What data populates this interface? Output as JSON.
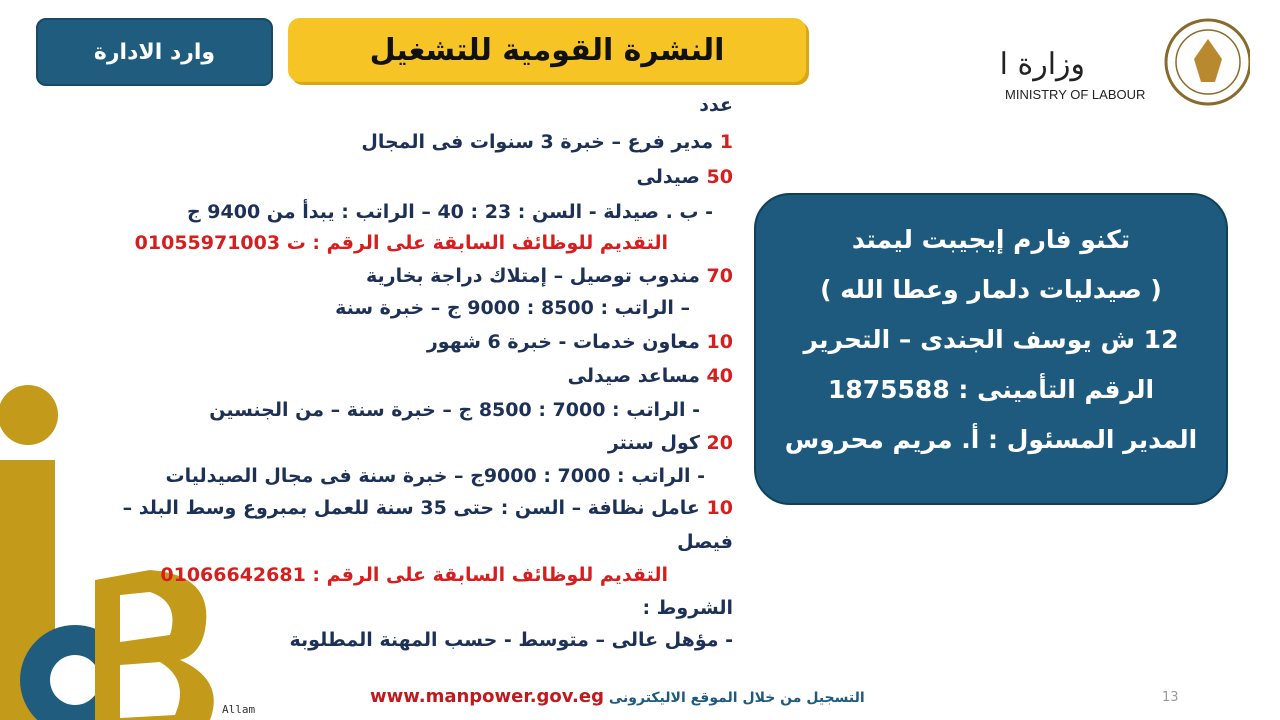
{
  "header": {
    "department_label": "وارد الادارة",
    "title": "النشرة القومية للتشغيل",
    "logo": {
      "arabic": "وزارة العمل",
      "english": "MINISTRY OF LABOUR"
    }
  },
  "jobs": {
    "heading": "عدد",
    "lines": [
      {
        "count": "1",
        "text": "مدير فرع – خبرة 3 سنوات فى المجال"
      },
      {
        "count": "50",
        "text": "صيدلى"
      },
      {
        "count": "",
        "text": "- ب . صيدلة -  السن :  23 : 40  – الراتب : يبدأ من 9400 ج"
      },
      {
        "count": "",
        "text": "التقديم للوظائف السابقة على الرقم : ت 01055971003",
        "red": true
      },
      {
        "count": "70",
        "text": "مندوب توصيل – إمتلاك دراجة بخارية"
      },
      {
        "count": "",
        "text": "– الراتب : 8500 : 9000 ج – خبرة سنة"
      },
      {
        "count": "10",
        "text": "معاون خدمات  -  خبرة 6 شهور"
      },
      {
        "count": "40",
        "text": "مساعد صيدلى"
      },
      {
        "count": "",
        "text": "-  الراتب : 7000 : 8500 ج – خبرة سنة  – من الجنسين"
      },
      {
        "count": "20",
        "text": "كول سنتر"
      },
      {
        "count": "",
        "text": "-  الراتب : 7000 : 9000ج – خبرة سنة فى مجال الصيدليات"
      },
      {
        "count": "10",
        "text": "عامل نظافة – السن : حتى 35 سنة للعمل بمبروع وسط البلد –"
      },
      {
        "count": "",
        "text": "فيصل"
      },
      {
        "count": "",
        "text": "التقديم للوظائف السابقة على الرقم  :  01066642681",
        "red": true
      },
      {
        "count": "",
        "text": "الشروط :"
      },
      {
        "count": "",
        "text": "-     مؤهل عالى – متوسط  - حسب المهنة المطلوبة"
      }
    ]
  },
  "company": {
    "lines": [
      "تكنو فارم إيجيبت ليمتد",
      "( صيدليات دلمار وعطا الله )",
      "12  ش يوسف الجندى – التحرير",
      "الرقم التأمينى : 1875588",
      "المدير المسئول : أ. مريم محروس"
    ]
  },
  "footer": {
    "register_text": "التسجيل من خلال الموقع الاليكترونى",
    "url": "www.manpower.gov.eg",
    "page_number": "13",
    "signature": "Allam"
  },
  "colors": {
    "navy": "#1f5c7d",
    "yellow": "#f7c425",
    "red": "#d71e1e",
    "gold": "#c39a1a"
  }
}
